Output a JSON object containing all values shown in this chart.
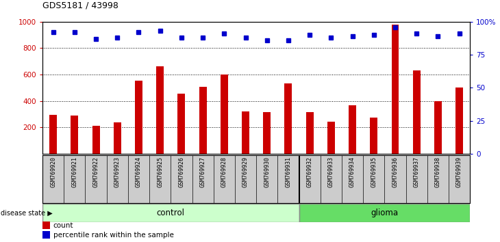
{
  "title": "GDS5181 / 43998",
  "samples": [
    "GSM769920",
    "GSM769921",
    "GSM769922",
    "GSM769923",
    "GSM769924",
    "GSM769925",
    "GSM769926",
    "GSM769927",
    "GSM769928",
    "GSM769929",
    "GSM769930",
    "GSM769931",
    "GSM769932",
    "GSM769933",
    "GSM769934",
    "GSM769935",
    "GSM769936",
    "GSM769937",
    "GSM769938",
    "GSM769939"
  ],
  "counts": [
    295,
    290,
    210,
    235,
    555,
    660,
    455,
    505,
    600,
    320,
    315,
    535,
    315,
    245,
    365,
    275,
    980,
    630,
    400,
    500
  ],
  "percentiles": [
    92,
    92,
    87,
    88,
    92,
    93,
    88,
    88,
    91,
    88,
    86,
    86,
    90,
    88,
    89,
    90,
    96,
    91,
    89,
    91
  ],
  "control_count": 12,
  "glioma_count": 8,
  "bar_color": "#cc0000",
  "dot_color": "#0000cc",
  "control_color": "#ccffcc",
  "glioma_color": "#66dd66",
  "label_bg_color": "#cccccc",
  "plot_bg_color": "#ffffff",
  "ylim_left": [
    0,
    1000
  ],
  "ylim_right": [
    0,
    100
  ],
  "yticks_left": [
    200,
    400,
    600,
    800,
    1000
  ],
  "yticks_right": [
    0,
    25,
    50,
    75,
    100
  ],
  "grid_values": [
    200,
    400,
    600,
    800,
    1000
  ],
  "legend_count_label": "count",
  "legend_pct_label": "percentile rank within the sample",
  "disease_label": "disease state",
  "control_label": "control",
  "glioma_label": "glioma",
  "pct_scale": 10
}
